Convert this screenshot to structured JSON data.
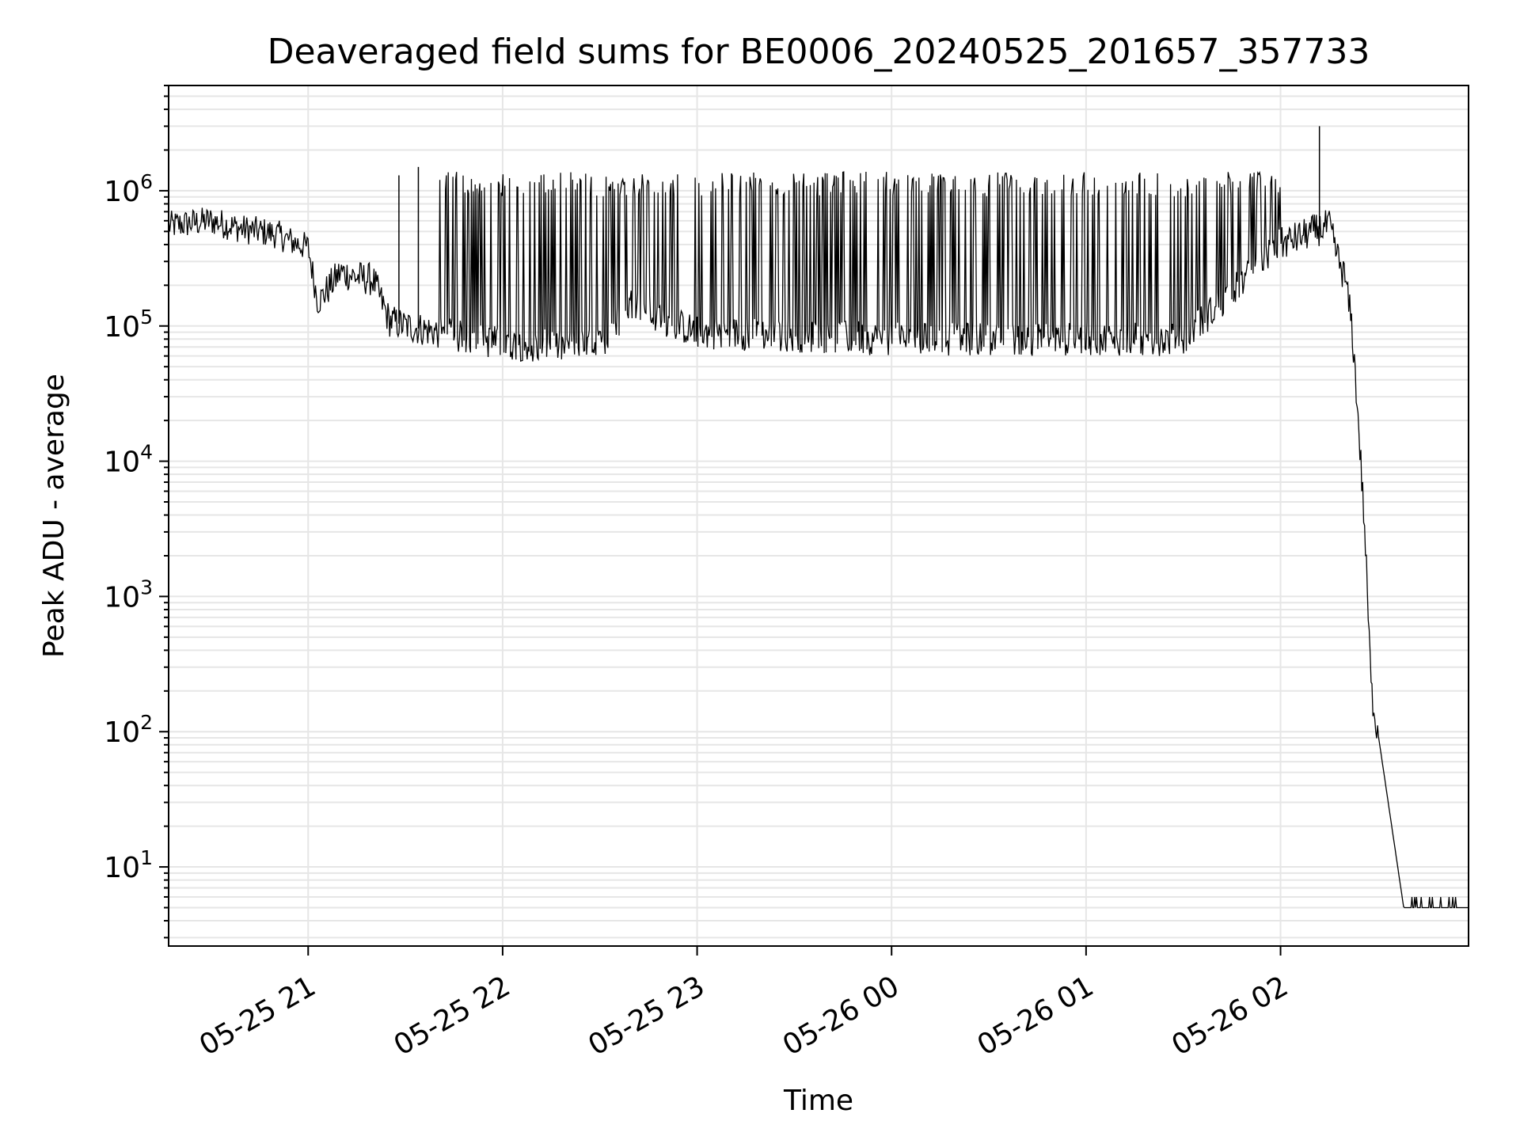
{
  "chart_data": {
    "type": "line",
    "title": "Deaveraged field sums for BE0006_20240525_201657_357733",
    "xlabel": "Time",
    "ylabel": "Peak ADU - average",
    "yscale": "log",
    "grid": true,
    "line_color": "#000000",
    "grid_color": "#e6e6e6",
    "xlim": [
      "2024-05-25T20:16:57",
      "2024-05-26T02:58:00"
    ],
    "ylim": [
      2.6,
      6000000
    ],
    "x_ticks": [
      {
        "label": "05-25 21",
        "value": "2024-05-25T21:00:00"
      },
      {
        "label": "05-25 22",
        "value": "2024-05-25T22:00:00"
      },
      {
        "label": "05-25 23",
        "value": "2024-05-25T23:00:00"
      },
      {
        "label": "05-26 00",
        "value": "2024-05-26T00:00:00"
      },
      {
        "label": "05-26 01",
        "value": "2024-05-26T01:00:00"
      },
      {
        "label": "05-26 02",
        "value": "2024-05-26T02:00:00"
      }
    ],
    "y_ticks": [
      {
        "base": "10",
        "exp": "1",
        "value": 10
      },
      {
        "base": "10",
        "exp": "2",
        "value": 100
      },
      {
        "base": "10",
        "exp": "3",
        "value": 1000
      },
      {
        "base": "10",
        "exp": "4",
        "value": 10000
      },
      {
        "base": "10",
        "exp": "5",
        "value": 100000
      },
      {
        "base": "10",
        "exp": "6",
        "value": 1000000
      }
    ],
    "series": [
      {
        "x": [
          "2024-05-25T20:17:00",
          "2024-05-25T20:30:00",
          "2024-05-25T20:40:00",
          "2024-05-25T20:50:00",
          "2024-05-25T20:55:00",
          "2024-05-25T21:00:00",
          "2024-05-25T21:03:00",
          "2024-05-25T21:10:00",
          "2024-05-25T21:15:00",
          "2024-05-25T21:20:00",
          "2024-05-25T21:25:00",
          "2024-05-25T21:30:00",
          "2024-05-25T21:40:00",
          "2024-05-25T21:50:00",
          "2024-05-25T22:00:00",
          "2024-05-25T22:15:00",
          "2024-05-25T22:30:00",
          "2024-05-25T22:40:00",
          "2024-05-25T22:50:00",
          "2024-05-25T23:00:00",
          "2024-05-25T23:30:00",
          "2024-05-26T00:00:00",
          "2024-05-26T00:30:00",
          "2024-05-26T01:00:00",
          "2024-05-26T01:30:00",
          "2024-05-26T02:00:00",
          "2024-05-26T02:10:00",
          "2024-05-26T02:15:00",
          "2024-05-26T02:18:00",
          "2024-05-26T02:20:00",
          "2024-05-26T02:22:00",
          "2024-05-26T02:24:00",
          "2024-05-26T02:26:00",
          "2024-05-26T02:28:00",
          "2024-05-26T02:30:00",
          "2024-05-26T02:38:00",
          "2024-05-26T02:58:00"
        ],
        "y": [
          550000,
          600000,
          520000,
          480000,
          420000,
          380000,
          150000,
          250000,
          230000,
          220000,
          110000,
          100000,
          90000,
          80000,
          75000,
          70000,
          72000,
          150000,
          110000,
          90000,
          85000,
          80000,
          80000,
          80000,
          80000,
          400000,
          500000,
          550000,
          300000,
          220000,
          100000,
          20000,
          3000,
          200,
          100,
          5,
          5
        ],
        "spikes": [
          {
            "x": "2024-05-25T21:28:00",
            "y": 1300000
          },
          {
            "x": "2024-05-25T21:34:00",
            "y": 1500000
          },
          {
            "x": "2024-05-26T02:12:00",
            "y": 3000000
          }
        ]
      }
    ]
  }
}
